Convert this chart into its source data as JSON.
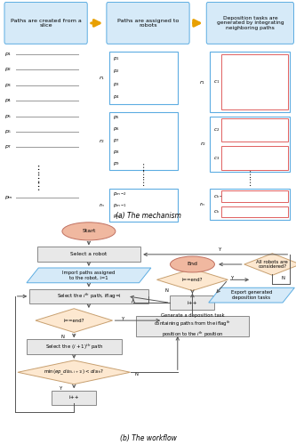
{
  "part_a_label": "(a) The mechanism",
  "part_b_label": "(b) The workflow",
  "box1_text": "Paths are created from a\nslice",
  "box2_text": "Paths are assigned to\nrobots",
  "box3_text": "Deposition tasks are\ngenerated by integrating\nneighboring paths",
  "bg_color": "#ffffff",
  "blue_fill": "#d6eaf8",
  "blue_border": "#5dade2",
  "red_border": "#e06060",
  "orange_arrow": "#e8a000",
  "flow_box_fill": "#e8e8e8",
  "flow_box_border": "#888888",
  "flow_diamond_fill": "#fde8d0",
  "flow_diamond_border": "#c8a070",
  "flow_para_fill": "#d6eaf8",
  "flow_para_border": "#5dade2",
  "flow_oval_fill": "#f0b8a0",
  "flow_oval_border": "#c07060",
  "arr_color": "#555555"
}
